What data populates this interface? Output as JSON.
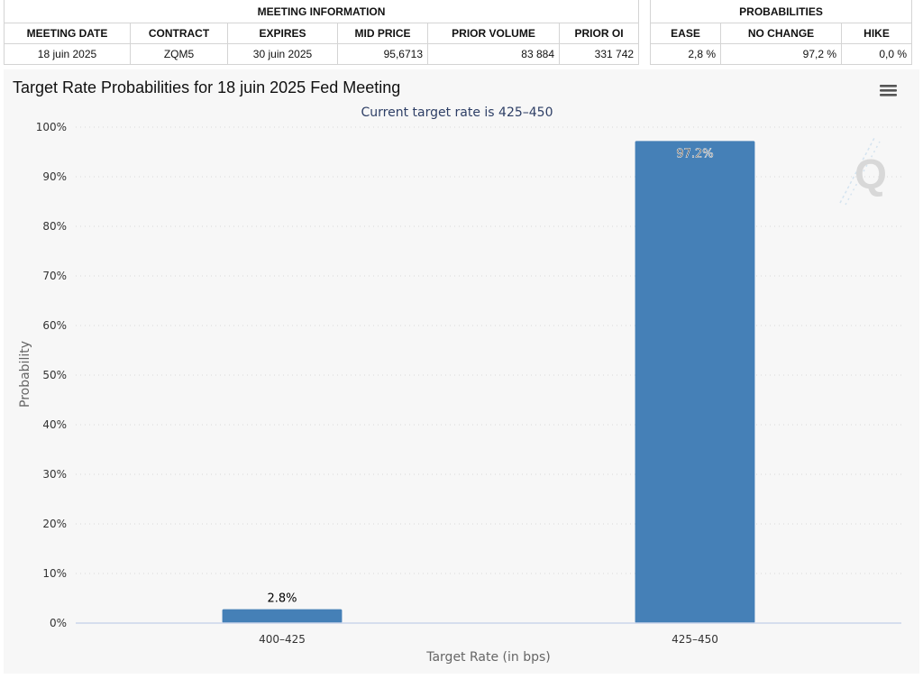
{
  "meeting_info": {
    "group_label": "MEETING INFORMATION",
    "columns": [
      "MEETING DATE",
      "CONTRACT",
      "EXPIRES",
      "MID PRICE",
      "PRIOR VOLUME",
      "PRIOR OI"
    ],
    "row": [
      "18 juin 2025",
      "ZQM5",
      "30 juin 2025",
      "95,6713",
      "83 884",
      "331 742"
    ]
  },
  "probabilities": {
    "group_label": "PROBABILITIES",
    "columns": [
      "EASE",
      "NO CHANGE",
      "HIKE"
    ],
    "row": [
      "2,8 %",
      "97,2 %",
      "0,0 %"
    ]
  },
  "colors": {
    "bar": "#4580b7",
    "panel_bg": "#f7f7f7",
    "subtitle": "#2e3f66"
  },
  "icons": {
    "menu": "hamburger-menu-icon",
    "watermark": "q-logo-watermark"
  },
  "chart_data": {
    "type": "bar",
    "title": "Target Rate Probabilities for 18 juin 2025 Fed Meeting",
    "subtitle": "Current target rate is 425–450",
    "xlabel": "Target Rate (in bps)",
    "ylabel": "Probability",
    "categories": [
      "400–425",
      "425–450"
    ],
    "values": [
      2.8,
      97.2
    ],
    "data_labels": [
      "2.8%",
      "97.2%"
    ],
    "ylim": [
      0,
      100
    ],
    "yticks": [
      0,
      10,
      20,
      30,
      40,
      50,
      60,
      70,
      80,
      90,
      100
    ],
    "ytick_labels": [
      "0%",
      "10%",
      "20%",
      "30%",
      "40%",
      "50%",
      "60%",
      "70%",
      "80%",
      "90%",
      "100%"
    ],
    "grid": true,
    "legend": "none"
  }
}
